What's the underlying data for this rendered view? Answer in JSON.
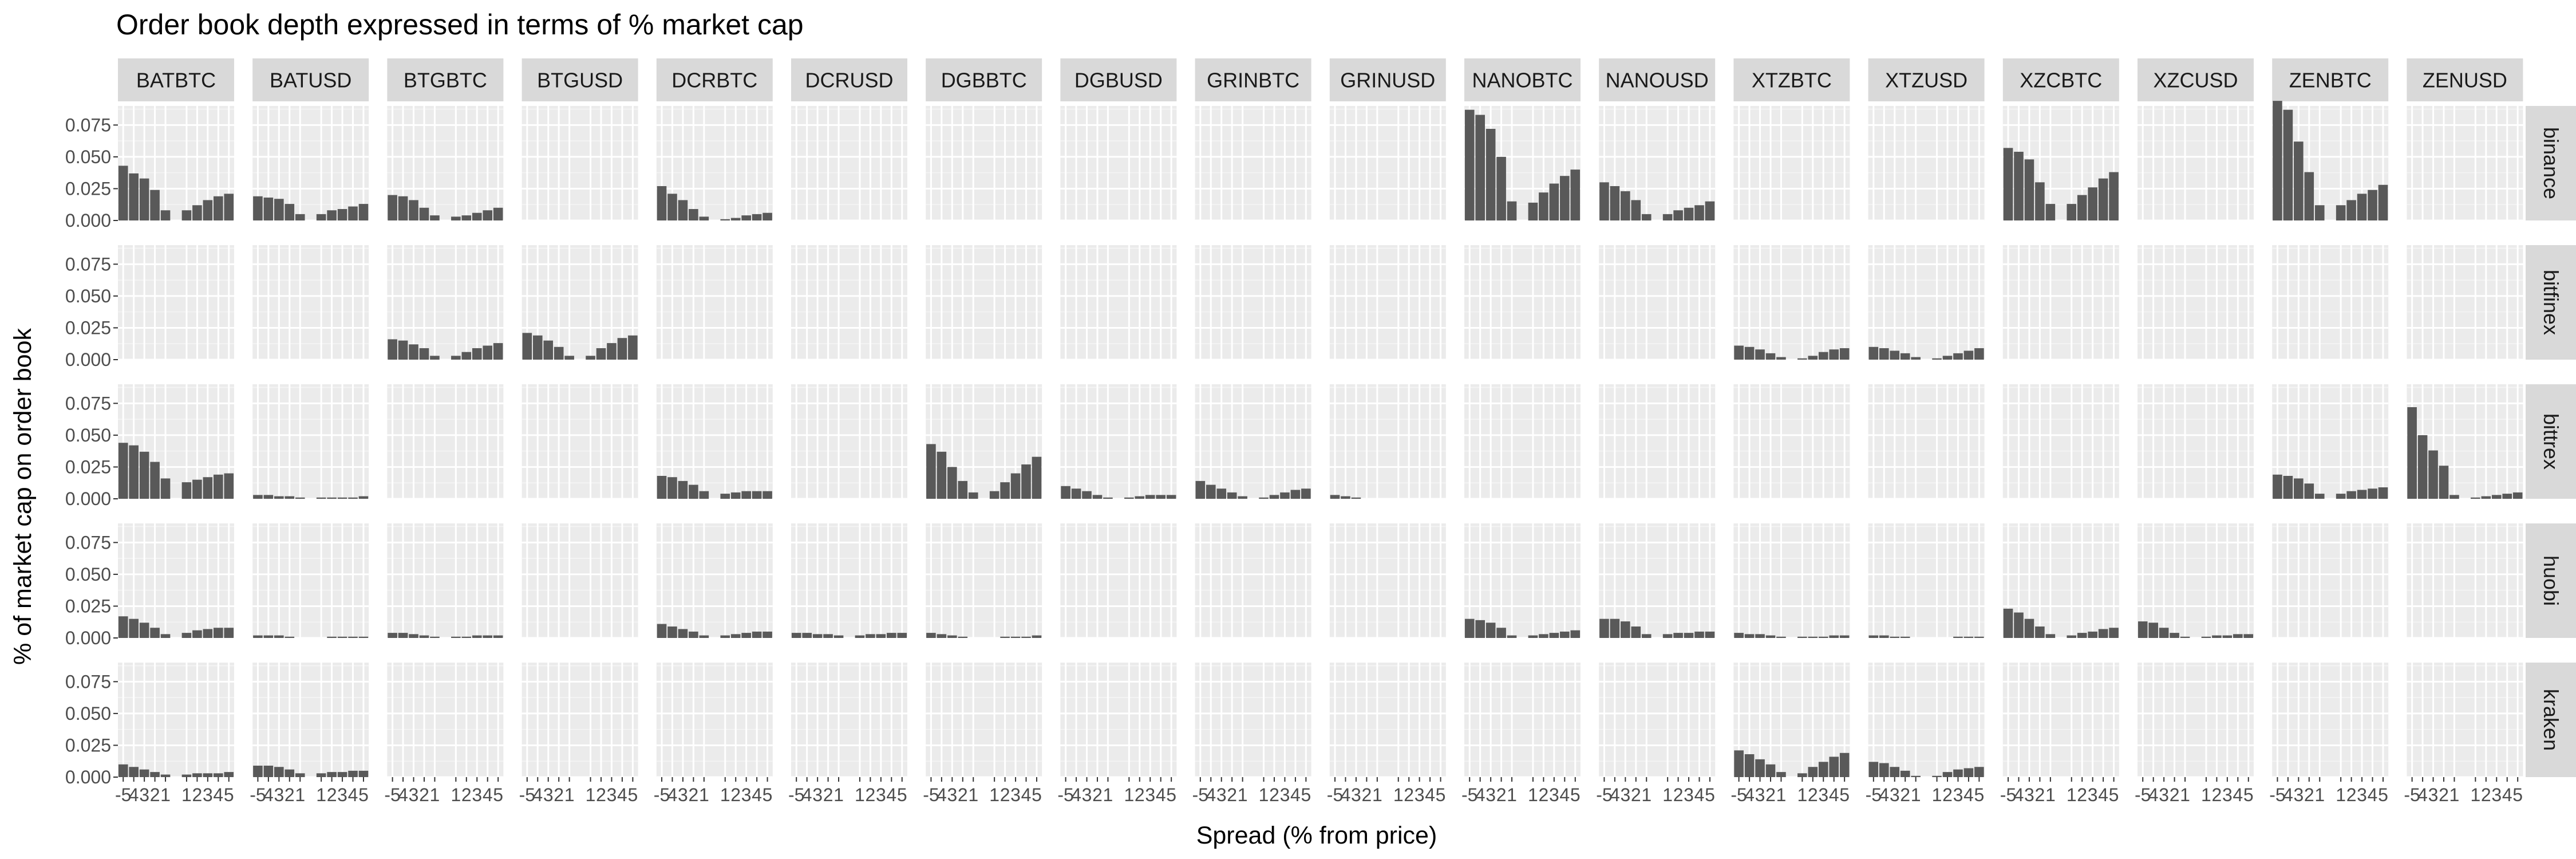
{
  "chart_data": {
    "type": "bar",
    "title": "Order book depth expressed in terms of % market cap",
    "xlabel": "Spread (% from price)",
    "ylabel": "% of market cap on order book",
    "facet_columns": [
      "BATBTC",
      "BATUSD",
      "BTGBTC",
      "BTGUSD",
      "DCRBTC",
      "DCRUSD",
      "DGBBTC",
      "DGBUSD",
      "GRINBTC",
      "GRINUSD",
      "NANOBTC",
      "NANOUSD",
      "XTZBTC",
      "XTZUSD",
      "XZCBTC",
      "XZCUSD",
      "ZENBTC",
      "ZENUSD"
    ],
    "facet_rows": [
      "binance",
      "bitfinex",
      "bittrex",
      "huobi",
      "kraken"
    ],
    "x_ticks": [
      -5,
      -4,
      -3,
      -2,
      -1,
      1,
      2,
      3,
      4,
      5
    ],
    "x_tick_labels": [
      "-5",
      "4",
      "3",
      "2",
      "1",
      "1",
      "2",
      "3",
      "4",
      "5"
    ],
    "y_ticks": [
      0.0,
      0.025,
      0.05,
      0.075
    ],
    "y_tick_labels": [
      "0.000",
      "0.025",
      "0.050",
      "0.075"
    ],
    "ylim": [
      0,
      0.09
    ],
    "grid": true,
    "series_note": "values ordered by x_ticks: -5,-4,-3,-2,-1,1,2,3,4,5",
    "panels": [
      {
        "exchange": "binance",
        "pair": "BATBTC",
        "values": [
          0.043,
          0.037,
          0.033,
          0.024,
          0.008,
          0.008,
          0.012,
          0.016,
          0.019,
          0.021
        ]
      },
      {
        "exchange": "binance",
        "pair": "BATUSD",
        "values": [
          0.019,
          0.018,
          0.017,
          0.013,
          0.005,
          0.005,
          0.008,
          0.009,
          0.011,
          0.013
        ]
      },
      {
        "exchange": "binance",
        "pair": "BTGBTC",
        "values": [
          0.02,
          0.019,
          0.016,
          0.01,
          0.004,
          0.003,
          0.004,
          0.006,
          0.008,
          0.01
        ]
      },
      {
        "exchange": "binance",
        "pair": "DCRBTC",
        "values": [
          0.027,
          0.021,
          0.016,
          0.009,
          0.003,
          0.001,
          0.002,
          0.004,
          0.005,
          0.006
        ]
      },
      {
        "exchange": "binance",
        "pair": "NANOBTC",
        "values": [
          0.087,
          0.083,
          0.072,
          0.05,
          0.015,
          0.014,
          0.022,
          0.029,
          0.035,
          0.04
        ]
      },
      {
        "exchange": "binance",
        "pair": "NANOUSD",
        "values": [
          0.03,
          0.027,
          0.023,
          0.016,
          0.005,
          0.005,
          0.008,
          0.01,
          0.012,
          0.015
        ]
      },
      {
        "exchange": "binance",
        "pair": "XZCBTC",
        "values": [
          0.057,
          0.054,
          0.048,
          0.03,
          0.013,
          0.013,
          0.02,
          0.026,
          0.033,
          0.038
        ]
      },
      {
        "exchange": "binance",
        "pair": "ZENBTC",
        "values": [
          0.094,
          0.087,
          0.062,
          0.038,
          0.012,
          0.012,
          0.016,
          0.021,
          0.024,
          0.028
        ]
      },
      {
        "exchange": "bitfinex",
        "pair": "BTGBTC",
        "values": [
          0.016,
          0.015,
          0.012,
          0.009,
          0.003,
          0.003,
          0.006,
          0.009,
          0.011,
          0.013
        ]
      },
      {
        "exchange": "bitfinex",
        "pair": "BTGUSD",
        "values": [
          0.021,
          0.019,
          0.015,
          0.01,
          0.003,
          0.003,
          0.009,
          0.013,
          0.017,
          0.019
        ]
      },
      {
        "exchange": "bitfinex",
        "pair": "XTZBTC",
        "values": [
          0.011,
          0.01,
          0.008,
          0.005,
          0.002,
          0.001,
          0.003,
          0.006,
          0.008,
          0.009
        ]
      },
      {
        "exchange": "bitfinex",
        "pair": "XTZUSD",
        "values": [
          0.01,
          0.009,
          0.007,
          0.005,
          0.002,
          0.001,
          0.003,
          0.005,
          0.007,
          0.009
        ]
      },
      {
        "exchange": "bittrex",
        "pair": "BATBTC",
        "values": [
          0.044,
          0.042,
          0.037,
          0.029,
          0.016,
          0.013,
          0.015,
          0.017,
          0.019,
          0.02
        ]
      },
      {
        "exchange": "bittrex",
        "pair": "BATUSD",
        "values": [
          0.003,
          0.003,
          0.002,
          0.002,
          0.001,
          0.001,
          0.001,
          0.001,
          0.001,
          0.002
        ]
      },
      {
        "exchange": "bittrex",
        "pair": "DCRBTC",
        "values": [
          0.018,
          0.017,
          0.014,
          0.011,
          0.006,
          0.004,
          0.005,
          0.006,
          0.006,
          0.006
        ]
      },
      {
        "exchange": "bittrex",
        "pair": "DGBBTC",
        "values": [
          0.043,
          0.037,
          0.025,
          0.014,
          0.005,
          0.006,
          0.013,
          0.02,
          0.027,
          0.033
        ]
      },
      {
        "exchange": "bittrex",
        "pair": "DGBUSD",
        "values": [
          0.01,
          0.008,
          0.006,
          0.003,
          0.001,
          0.001,
          0.002,
          0.003,
          0.003,
          0.003
        ]
      },
      {
        "exchange": "bittrex",
        "pair": "GRINBTC",
        "values": [
          0.014,
          0.011,
          0.008,
          0.005,
          0.002,
          0.001,
          0.003,
          0.005,
          0.007,
          0.008
        ]
      },
      {
        "exchange": "bittrex",
        "pair": "GRINUSD",
        "values": [
          0.003,
          0.002,
          0.001,
          0.0,
          0.0,
          0.0,
          0.0,
          0.0,
          0.0,
          0.0
        ]
      },
      {
        "exchange": "bittrex",
        "pair": "ZENBTC",
        "values": [
          0.019,
          0.018,
          0.016,
          0.012,
          0.004,
          0.004,
          0.006,
          0.007,
          0.008,
          0.009
        ]
      },
      {
        "exchange": "bittrex",
        "pair": "ZENUSD",
        "values": [
          0.072,
          0.05,
          0.038,
          0.026,
          0.003,
          0.001,
          0.002,
          0.003,
          0.004,
          0.005
        ]
      },
      {
        "exchange": "huobi",
        "pair": "BATBTC",
        "values": [
          0.017,
          0.015,
          0.012,
          0.008,
          0.003,
          0.004,
          0.006,
          0.007,
          0.008,
          0.008
        ]
      },
      {
        "exchange": "huobi",
        "pair": "BATUSD",
        "values": [
          0.002,
          0.002,
          0.002,
          0.001,
          0.0,
          0.0,
          0.001,
          0.001,
          0.001,
          0.001
        ]
      },
      {
        "exchange": "huobi",
        "pair": "BTGBTC",
        "values": [
          0.004,
          0.004,
          0.003,
          0.002,
          0.001,
          0.001,
          0.001,
          0.002,
          0.002,
          0.002
        ]
      },
      {
        "exchange": "huobi",
        "pair": "DCRBTC",
        "values": [
          0.011,
          0.009,
          0.007,
          0.005,
          0.002,
          0.002,
          0.003,
          0.004,
          0.005,
          0.005
        ]
      },
      {
        "exchange": "huobi",
        "pair": "DCRUSD",
        "values": [
          0.004,
          0.004,
          0.003,
          0.003,
          0.002,
          0.002,
          0.003,
          0.003,
          0.004,
          0.004
        ]
      },
      {
        "exchange": "huobi",
        "pair": "DGBBTC",
        "values": [
          0.004,
          0.003,
          0.002,
          0.001,
          0.0,
          0.0,
          0.001,
          0.001,
          0.001,
          0.002
        ]
      },
      {
        "exchange": "huobi",
        "pair": "NANOBTC",
        "values": [
          0.015,
          0.014,
          0.012,
          0.008,
          0.002,
          0.002,
          0.003,
          0.004,
          0.005,
          0.006
        ]
      },
      {
        "exchange": "huobi",
        "pair": "NANOUSD",
        "values": [
          0.015,
          0.015,
          0.013,
          0.009,
          0.003,
          0.003,
          0.004,
          0.004,
          0.005,
          0.005
        ]
      },
      {
        "exchange": "huobi",
        "pair": "XTZBTC",
        "values": [
          0.004,
          0.003,
          0.003,
          0.002,
          0.001,
          0.001,
          0.001,
          0.001,
          0.002,
          0.002
        ]
      },
      {
        "exchange": "huobi",
        "pair": "XTZUSD",
        "values": [
          0.002,
          0.002,
          0.001,
          0.001,
          0.0,
          0.0,
          0.0,
          0.001,
          0.001,
          0.001
        ]
      },
      {
        "exchange": "huobi",
        "pair": "XZCBTC",
        "values": [
          0.023,
          0.02,
          0.015,
          0.009,
          0.003,
          0.002,
          0.004,
          0.005,
          0.007,
          0.008
        ]
      },
      {
        "exchange": "huobi",
        "pair": "XZCUSD",
        "values": [
          0.013,
          0.012,
          0.008,
          0.004,
          0.001,
          0.001,
          0.002,
          0.002,
          0.003,
          0.003
        ]
      },
      {
        "exchange": "kraken",
        "pair": "BATBTC",
        "values": [
          0.01,
          0.008,
          0.006,
          0.004,
          0.002,
          0.002,
          0.003,
          0.003,
          0.003,
          0.004
        ]
      },
      {
        "exchange": "kraken",
        "pair": "BATUSD",
        "values": [
          0.009,
          0.009,
          0.008,
          0.006,
          0.003,
          0.003,
          0.004,
          0.004,
          0.005,
          0.005
        ]
      },
      {
        "exchange": "kraken",
        "pair": "XTZBTC",
        "values": [
          0.021,
          0.018,
          0.014,
          0.01,
          0.004,
          0.003,
          0.008,
          0.012,
          0.016,
          0.019
        ]
      },
      {
        "exchange": "kraken",
        "pair": "XTZUSD",
        "values": [
          0.012,
          0.011,
          0.008,
          0.005,
          0.001,
          0.001,
          0.004,
          0.006,
          0.007,
          0.008
        ]
      }
    ]
  }
}
